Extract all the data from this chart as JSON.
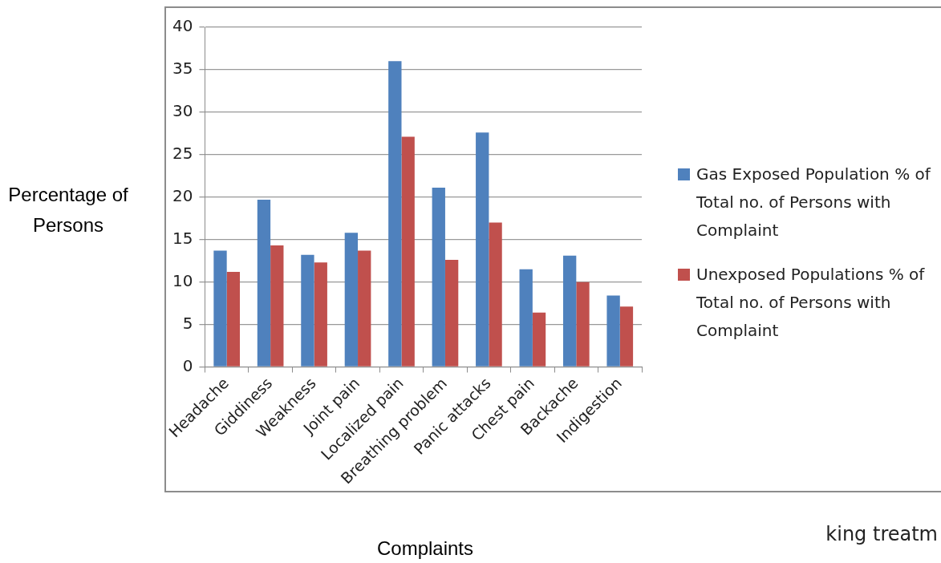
{
  "chart_data": {
    "type": "bar",
    "xlabel": "Complaints",
    "ylabel": "Percentage of Persons",
    "categories": [
      "Headache",
      "Giddiness",
      "Weakness",
      "Joint pain",
      "Localized pain",
      "Breathing problem",
      "Panic attacks",
      "Chest pain",
      "Backache",
      "Indigestion"
    ],
    "series": [
      {
        "name": "Gas Exposed Population % of Total no. of Persons with Complaint",
        "color": "#4f81bd",
        "values": [
          13.7,
          19.7,
          13.2,
          15.8,
          36.0,
          21.1,
          27.6,
          11.5,
          13.1,
          8.4
        ]
      },
      {
        "name": "Unexposed Populations % of Total no. of Persons with Complaint",
        "color": "#c0504d",
        "values": [
          11.2,
          14.3,
          12.3,
          13.7,
          27.1,
          12.6,
          17.0,
          6.4,
          10.0,
          7.1
        ]
      }
    ],
    "ylim": [
      0,
      40
    ],
    "yticks": [
      0,
      5,
      10,
      15,
      20,
      25,
      30,
      35,
      40
    ],
    "grid": "y",
    "legend": "right",
    "annotations": [
      "king treatm"
    ]
  }
}
